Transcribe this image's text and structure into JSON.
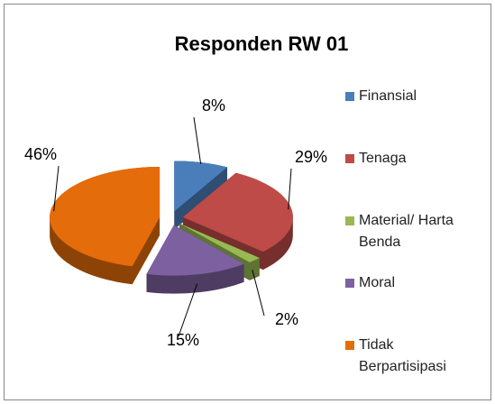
{
  "chart_data": {
    "type": "pie",
    "title": "Responden RW 01",
    "categories": [
      "Finansial",
      "Tenaga",
      "Material/ Harta Benda",
      "Moral",
      "Tidak Berpartisipasi"
    ],
    "values": [
      8,
      29,
      2,
      15,
      46
    ],
    "value_labels": [
      "8%",
      "29%",
      "2%",
      "15%",
      "46%"
    ],
    "colors": [
      "#4a7ebb",
      "#be4b48",
      "#98b954",
      "#7d60a0",
      "#e46c0a"
    ],
    "legend": "right"
  }
}
